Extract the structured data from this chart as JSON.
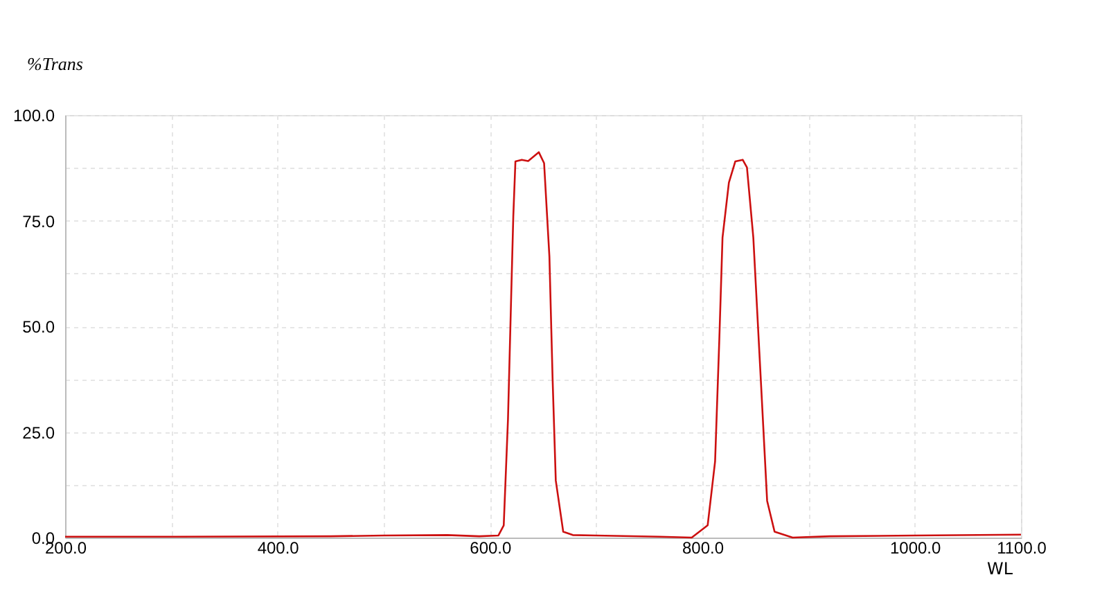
{
  "chart_data": {
    "type": "line",
    "xlabel": "WL",
    "ylabel": "%Trans",
    "xlim": [
      200,
      1100
    ],
    "ylim": [
      0,
      100
    ],
    "xticks": [
      {
        "value": 200,
        "label": "200.0"
      },
      {
        "value": 300,
        "label": null
      },
      {
        "value": 400,
        "label": "400.0"
      },
      {
        "value": 500,
        "label": null
      },
      {
        "value": 600,
        "label": "600.0"
      },
      {
        "value": 700,
        "label": null
      },
      {
        "value": 800,
        "label": "800.0"
      },
      {
        "value": 900,
        "label": null
      },
      {
        "value": 1000,
        "label": "1000.0"
      },
      {
        "value": 1100,
        "label": "1100.0"
      }
    ],
    "yticks": [
      {
        "value": 0,
        "label": "0.0"
      },
      {
        "value": 12.5,
        "label": null
      },
      {
        "value": 25,
        "label": "25.0"
      },
      {
        "value": 37.5,
        "label": null
      },
      {
        "value": 50,
        "label": "50.0"
      },
      {
        "value": 62.5,
        "label": null
      },
      {
        "value": 75,
        "label": "75.0"
      },
      {
        "value": 87.5,
        "label": null
      },
      {
        "value": 100,
        "label": "100.0"
      }
    ],
    "grid": true,
    "marker": "none",
    "line_style": "solid",
    "series": [
      {
        "color": "#cc1010",
        "x": [
          200,
          300,
          450,
          500,
          560,
          590,
          608,
          613,
          617,
          620,
          622,
          624,
          630,
          636,
          646,
          651,
          656,
          659,
          662,
          669,
          678,
          700,
          760,
          790,
          805,
          812,
          816,
          819,
          825,
          831,
          838,
          842,
          848,
          855,
          861,
          868,
          885,
          920,
          1000,
          1100
        ],
        "values": [
          0.2,
          0.2,
          0.3,
          0.5,
          0.6,
          0.3,
          0.5,
          2.9,
          28,
          57,
          76,
          89,
          89.4,
          89.1,
          91.2,
          88.6,
          66.5,
          37.6,
          13.5,
          1.4,
          0.6,
          0.5,
          0.2,
          0,
          2.9,
          18,
          47,
          71,
          84,
          89,
          89.4,
          87.6,
          71,
          37.6,
          8.7,
          1.4,
          0,
          0.3,
          0.5,
          0.7
        ]
      }
    ]
  }
}
